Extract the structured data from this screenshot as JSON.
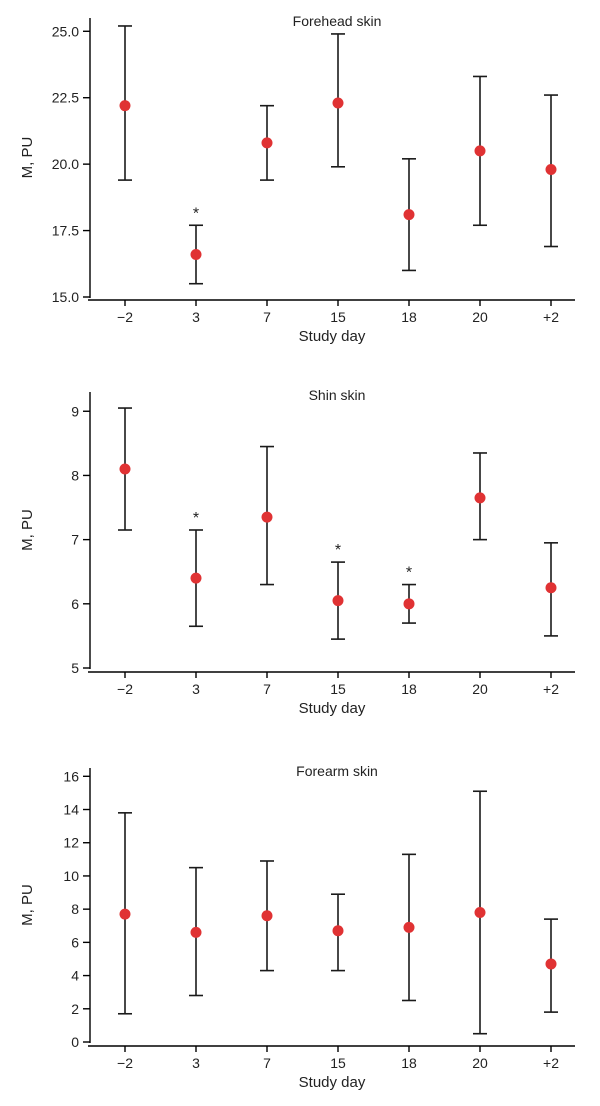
{
  "chart_data": [
    {
      "type": "scatter",
      "title": "Forehead skin",
      "xlabel": "Study day",
      "ylabel": "M, PU",
      "categories": [
        "−2",
        "3",
        "7",
        "15",
        "18",
        "20",
        "+2"
      ],
      "values": [
        22.2,
        16.6,
        20.8,
        22.3,
        18.1,
        20.5,
        19.8
      ],
      "error_low": [
        19.4,
        15.5,
        19.4,
        19.9,
        16.0,
        17.7,
        16.9
      ],
      "error_high": [
        25.2,
        17.7,
        22.2,
        24.9,
        20.2,
        23.3,
        22.6
      ],
      "significant": [
        false,
        true,
        false,
        false,
        false,
        false,
        false
      ],
      "annotation": "*",
      "yticks": [
        "15.0",
        "17.5",
        "20.0",
        "22.5",
        "25.0"
      ],
      "ylim": [
        15.0,
        25.5
      ],
      "marker_color": "#e03233"
    },
    {
      "type": "scatter",
      "title": "Shin skin",
      "xlabel": "Study day",
      "ylabel": "M, PU",
      "categories": [
        "−2",
        "3",
        "7",
        "15",
        "18",
        "20",
        "+2"
      ],
      "values": [
        8.1,
        6.4,
        7.35,
        6.05,
        6.0,
        7.65,
        6.25
      ],
      "error_low": [
        7.15,
        5.65,
        6.3,
        5.45,
        5.7,
        7.0,
        5.5
      ],
      "error_high": [
        9.05,
        7.15,
        8.45,
        6.65,
        6.3,
        8.35,
        6.95
      ],
      "significant": [
        false,
        true,
        false,
        true,
        true,
        false,
        false
      ],
      "annotation": "*",
      "yticks": [
        "5",
        "6",
        "7",
        "8",
        "9"
      ],
      "ylim": [
        5,
        9.3
      ],
      "marker_color": "#e03233"
    },
    {
      "type": "scatter",
      "title": "Forearm skin",
      "xlabel": "Study day",
      "ylabel": "M, PU",
      "categories": [
        "−2",
        "3",
        "7",
        "15",
        "18",
        "20",
        "+2"
      ],
      "values": [
        7.7,
        6.6,
        7.6,
        6.7,
        6.9,
        7.8,
        4.7
      ],
      "error_low": [
        1.7,
        2.8,
        4.3,
        4.3,
        2.5,
        0.5,
        1.8
      ],
      "error_high": [
        13.8,
        10.5,
        10.9,
        8.9,
        11.3,
        15.1,
        7.4
      ],
      "significant": [
        false,
        false,
        false,
        false,
        false,
        false,
        false
      ],
      "annotation": "*",
      "yticks": [
        "0",
        "2",
        "4",
        "6",
        "8",
        "10",
        "12",
        "14",
        "16"
      ],
      "ylim": [
        0,
        16.5
      ],
      "marker_color": "#e03233"
    }
  ]
}
